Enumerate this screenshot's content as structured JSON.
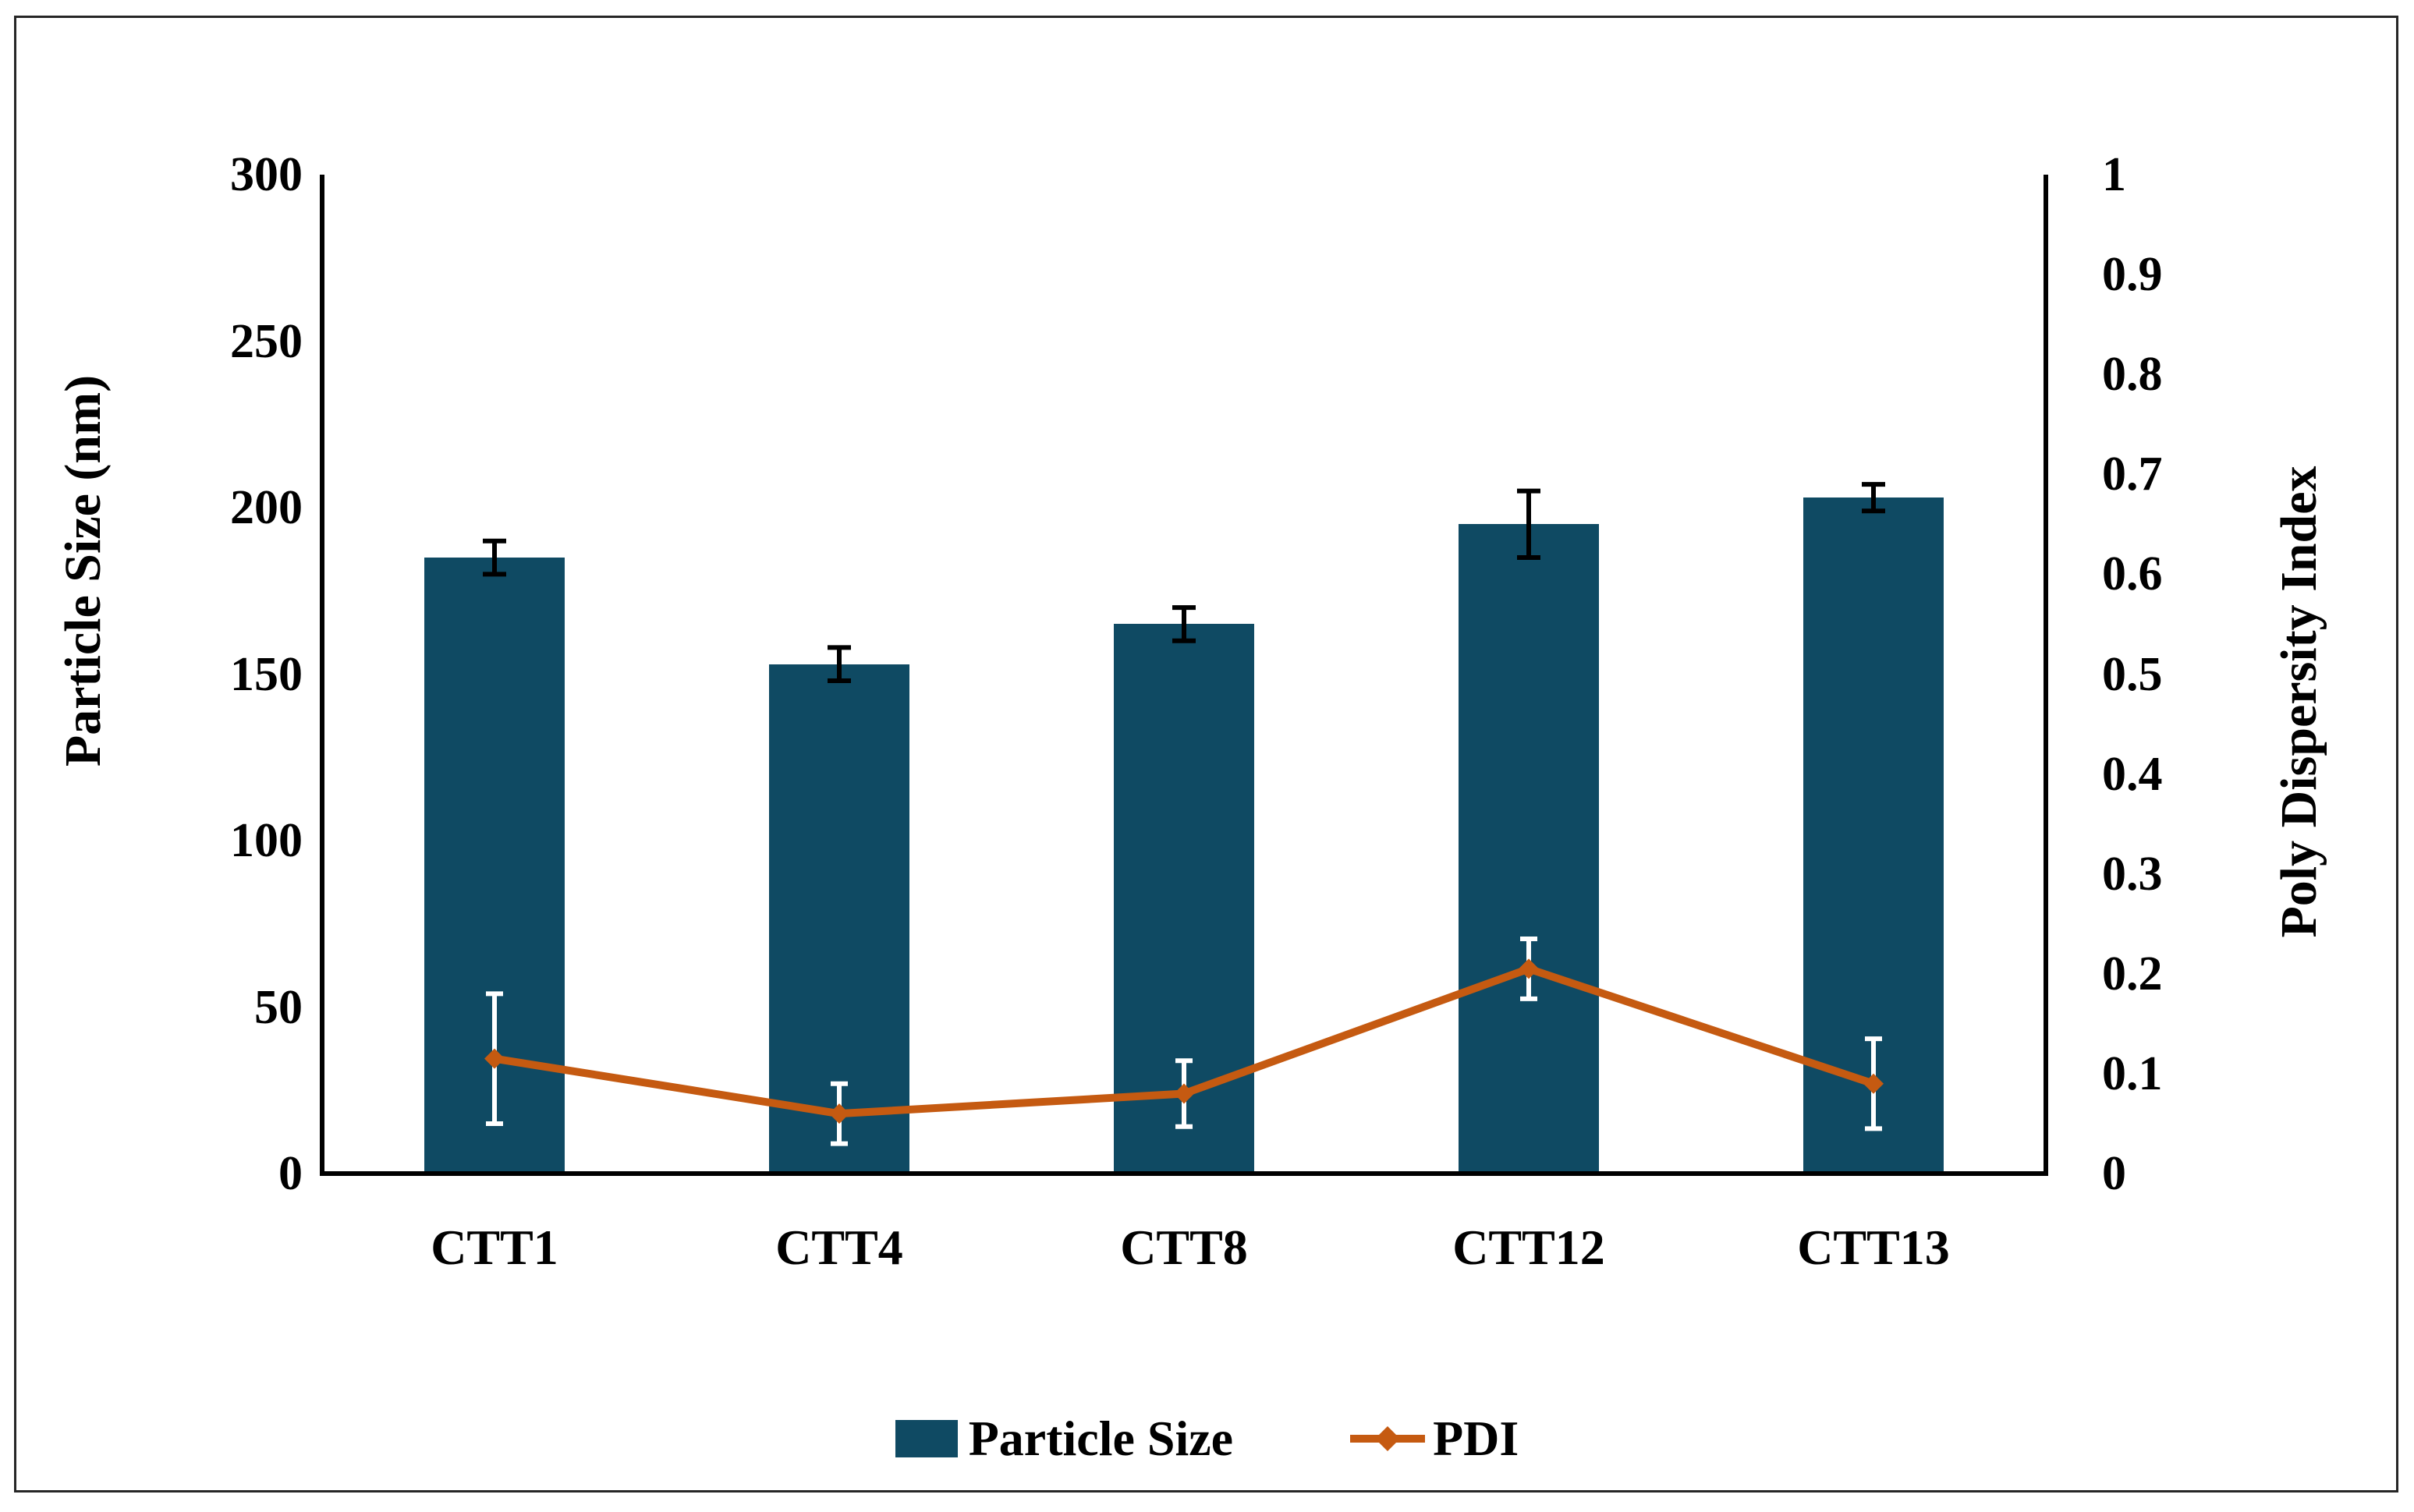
{
  "figure": {
    "background_color": "#ffffff",
    "border_color": "#262626"
  },
  "chart_data": {
    "type": "bar",
    "subtype": "bar-and-line-dual-axis",
    "categories": [
      "CTT1",
      "CTT4",
      "CTT8",
      "CTT12",
      "CTT13"
    ],
    "series": [
      {
        "name": "Particle Size",
        "type": "bar",
        "axis": "left",
        "color": "#0F4A63",
        "error_color": "#000000",
        "values": [
          185,
          153,
          165,
          195,
          203
        ],
        "errors": [
          5,
          5,
          5,
          10,
          4
        ]
      },
      {
        "name": "PDI",
        "type": "line",
        "axis": "right",
        "color": "#C55A11",
        "marker": "diamond",
        "error_color": "#ffffff",
        "values": [
          0.115,
          0.06,
          0.08,
          0.205,
          0.09
        ],
        "errors": [
          0.065,
          0.03,
          0.033,
          0.03,
          0.045
        ]
      }
    ],
    "left_axis": {
      "label": "Particle Size (nm)",
      "min": 0,
      "max": 300,
      "step": 50,
      "ticks": [
        "0",
        "50",
        "100",
        "150",
        "200",
        "250",
        "300"
      ]
    },
    "right_axis": {
      "label": "Poly Dispersity Index",
      "min": 0,
      "max": 1,
      "step": 0.1,
      "ticks": [
        "0",
        "0.1",
        "0.2",
        "0.3",
        "0.4",
        "0.5",
        "0.6",
        "0.7",
        "0.8",
        "0.9",
        "1"
      ]
    },
    "legend": {
      "position": "bottom",
      "items": [
        "Particle Size",
        "PDI"
      ]
    },
    "grid": false
  }
}
